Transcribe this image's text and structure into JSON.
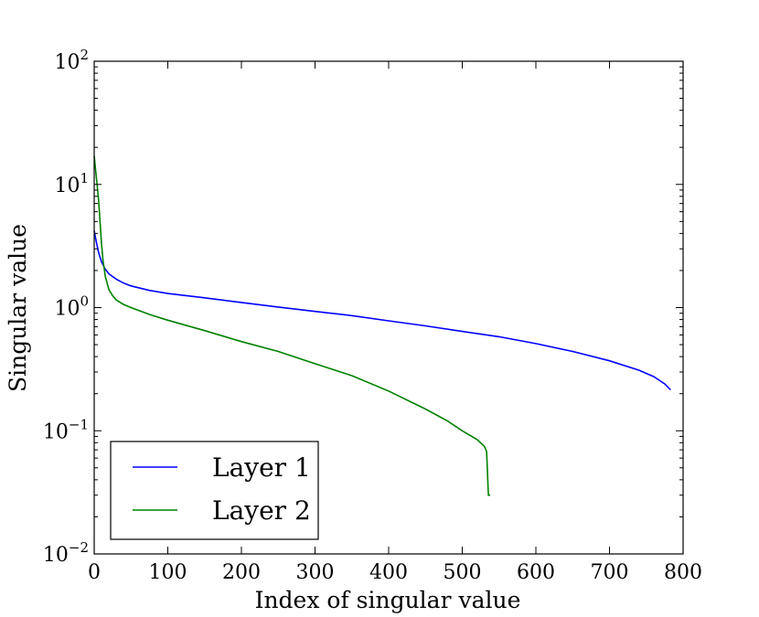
{
  "chart_data": {
    "type": "line",
    "title": "",
    "xlabel": "Index of singular value",
    "ylabel": "Singular value",
    "xlim": [
      0,
      800
    ],
    "ylim": [
      0.01,
      100
    ],
    "yscale": "log",
    "grid": false,
    "legend_position": "lower-left",
    "x_ticks": [
      "0",
      "100",
      "200",
      "300",
      "400",
      "500",
      "600",
      "700",
      "800"
    ],
    "y_ticks": [
      {
        "base": "10",
        "exp": "−2",
        "value": 0.01
      },
      {
        "base": "10",
        "exp": "−1",
        "value": 0.1
      },
      {
        "base": "10",
        "exp": "0",
        "value": 1
      },
      {
        "base": "10",
        "exp": "1",
        "value": 10
      },
      {
        "base": "10",
        "exp": "2",
        "value": 100
      }
    ],
    "series": [
      {
        "name": "Layer 1",
        "color": "#0000ff",
        "points": [
          [
            0,
            4.2
          ],
          [
            3,
            3.4
          ],
          [
            6,
            2.8
          ],
          [
            10,
            2.35
          ],
          [
            15,
            2.05
          ],
          [
            20,
            1.88
          ],
          [
            30,
            1.7
          ],
          [
            40,
            1.58
          ],
          [
            50,
            1.5
          ],
          [
            75,
            1.38
          ],
          [
            100,
            1.3
          ],
          [
            150,
            1.2
          ],
          [
            200,
            1.1
          ],
          [
            250,
            1.01
          ],
          [
            300,
            0.93
          ],
          [
            350,
            0.86
          ],
          [
            400,
            0.78
          ],
          [
            450,
            0.71
          ],
          [
            500,
            0.64
          ],
          [
            550,
            0.58
          ],
          [
            600,
            0.51
          ],
          [
            650,
            0.44
          ],
          [
            700,
            0.37
          ],
          [
            740,
            0.31
          ],
          [
            760,
            0.275
          ],
          [
            775,
            0.24
          ],
          [
            783,
            0.215
          ]
        ]
      },
      {
        "name": "Layer 2",
        "color": "#008000",
        "points": [
          [
            0,
            17
          ],
          [
            2,
            13
          ],
          [
            4,
            10
          ],
          [
            6,
            7.5
          ],
          [
            8,
            5.0
          ],
          [
            10,
            3.3
          ],
          [
            12,
            2.4
          ],
          [
            15,
            1.8
          ],
          [
            20,
            1.4
          ],
          [
            25,
            1.25
          ],
          [
            30,
            1.15
          ],
          [
            40,
            1.06
          ],
          [
            50,
            1.0
          ],
          [
            75,
            0.88
          ],
          [
            100,
            0.79
          ],
          [
            150,
            0.65
          ],
          [
            200,
            0.53
          ],
          [
            250,
            0.44
          ],
          [
            300,
            0.35
          ],
          [
            350,
            0.28
          ],
          [
            400,
            0.21
          ],
          [
            450,
            0.15
          ],
          [
            480,
            0.12
          ],
          [
            500,
            0.1
          ],
          [
            520,
            0.085
          ],
          [
            530,
            0.075
          ],
          [
            533,
            0.068
          ],
          [
            534,
            0.05
          ],
          [
            535,
            0.035
          ],
          [
            535.5,
            0.03
          ],
          [
            538,
            0.03
          ]
        ]
      }
    ]
  }
}
